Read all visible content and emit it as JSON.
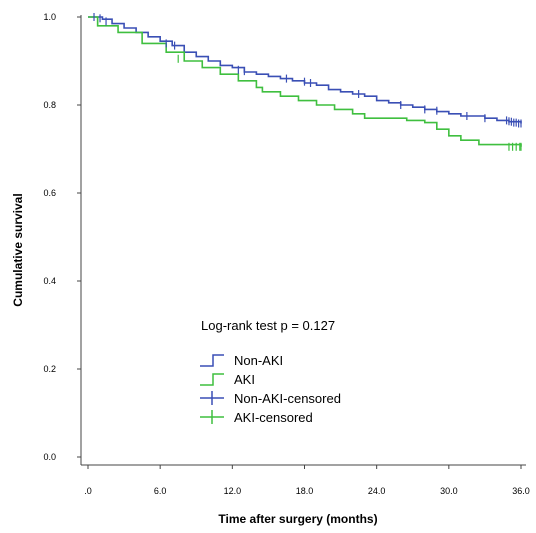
{
  "chart_data": {
    "type": "line",
    "title": "",
    "xlabel": "Time after surgery (months)",
    "ylabel": "Cumulative survival",
    "xlim": [
      0,
      36
    ],
    "ylim": [
      0,
      1.0
    ],
    "x_ticks": [
      ".0",
      "6.0",
      "12.0",
      "18.0",
      "24.0",
      "30.0",
      "36.0"
    ],
    "x_tick_values": [
      0,
      6,
      12,
      18,
      24,
      30,
      36
    ],
    "y_ticks": [
      "0.0",
      "0.2",
      "0.4",
      "0.6",
      "0.8",
      "1.0"
    ],
    "y_tick_values": [
      0,
      0.2,
      0.4,
      0.6,
      0.8,
      1.0
    ],
    "grid": false,
    "annotation": "Log-rank test p = 0.127",
    "legend_position": "center-left",
    "legend": [
      {
        "label": "Non-AKI",
        "kind": "line",
        "color": "#3a4fb5"
      },
      {
        "label": "AKI",
        "kind": "line",
        "color": "#3fbf3f"
      },
      {
        "label": "Non-AKI-censored",
        "kind": "censor",
        "color": "#3a4fb5"
      },
      {
        "label": "AKI-censored",
        "kind": "censor",
        "color": "#3fbf3f"
      }
    ],
    "series": [
      {
        "name": "Non-AKI",
        "color": "#3a4fb5",
        "step_points": [
          [
            0,
            1.0
          ],
          [
            1.2,
            0.995
          ],
          [
            2.0,
            0.985
          ],
          [
            3.0,
            0.975
          ],
          [
            4.0,
            0.965
          ],
          [
            5.0,
            0.955
          ],
          [
            6.0,
            0.945
          ],
          [
            7.0,
            0.935
          ],
          [
            8.0,
            0.92
          ],
          [
            9.0,
            0.91
          ],
          [
            10.0,
            0.9
          ],
          [
            11.0,
            0.89
          ],
          [
            12.0,
            0.885
          ],
          [
            13.0,
            0.875
          ],
          [
            14.0,
            0.87
          ],
          [
            15.0,
            0.865
          ],
          [
            16.0,
            0.86
          ],
          [
            17.0,
            0.855
          ],
          [
            18.0,
            0.85
          ],
          [
            19.0,
            0.845
          ],
          [
            20.0,
            0.835
          ],
          [
            21.0,
            0.83
          ],
          [
            22.0,
            0.825
          ],
          [
            23.0,
            0.82
          ],
          [
            24.0,
            0.81
          ],
          [
            25.0,
            0.805
          ],
          [
            26.0,
            0.8
          ],
          [
            27.0,
            0.795
          ],
          [
            28.0,
            0.79
          ],
          [
            29.0,
            0.785
          ],
          [
            30.0,
            0.78
          ],
          [
            31.0,
            0.775
          ],
          [
            32.0,
            0.775
          ],
          [
            33.0,
            0.77
          ],
          [
            34.0,
            0.765
          ],
          [
            35.0,
            0.762
          ],
          [
            36.0,
            0.758
          ]
        ],
        "censored": [
          [
            0.5,
            1.0
          ],
          [
            1.0,
            0.997
          ],
          [
            1.5,
            0.99
          ],
          [
            6.5,
            0.94
          ],
          [
            7.2,
            0.935
          ],
          [
            12.5,
            0.88
          ],
          [
            13.0,
            0.877
          ],
          [
            16.5,
            0.86
          ],
          [
            18.0,
            0.853
          ],
          [
            18.5,
            0.85
          ],
          [
            22.5,
            0.825
          ],
          [
            26.0,
            0.8
          ],
          [
            28.0,
            0.79
          ],
          [
            29.0,
            0.787
          ],
          [
            31.5,
            0.775
          ],
          [
            33.0,
            0.77
          ],
          [
            34.8,
            0.765
          ],
          [
            35.0,
            0.763
          ],
          [
            35.2,
            0.762
          ],
          [
            35.4,
            0.76
          ],
          [
            35.6,
            0.76
          ],
          [
            35.8,
            0.758
          ],
          [
            36.0,
            0.758
          ]
        ]
      },
      {
        "name": "AKI",
        "color": "#3fbf3f",
        "step_points": [
          [
            0,
            1.0
          ],
          [
            0.8,
            0.98
          ],
          [
            2.5,
            0.965
          ],
          [
            4.5,
            0.94
          ],
          [
            6.5,
            0.92
          ],
          [
            8.0,
            0.9
          ],
          [
            9.5,
            0.885
          ],
          [
            11.0,
            0.87
          ],
          [
            12.5,
            0.855
          ],
          [
            14.0,
            0.84
          ],
          [
            14.5,
            0.83
          ],
          [
            16.0,
            0.82
          ],
          [
            17.5,
            0.81
          ],
          [
            19.0,
            0.8
          ],
          [
            20.5,
            0.79
          ],
          [
            22.0,
            0.78
          ],
          [
            23.0,
            0.77
          ],
          [
            26.5,
            0.765
          ],
          [
            28.0,
            0.76
          ],
          [
            29.0,
            0.745
          ],
          [
            30.0,
            0.73
          ],
          [
            31.0,
            0.72
          ],
          [
            32.5,
            0.71
          ],
          [
            36.0,
            0.705
          ]
        ],
        "censored": [
          [
            0.8,
            0.99
          ],
          [
            7.5,
            0.905
          ],
          [
            35.0,
            0.705
          ],
          [
            35.3,
            0.705
          ],
          [
            35.6,
            0.705
          ],
          [
            35.9,
            0.705
          ],
          [
            36.0,
            0.705
          ]
        ]
      }
    ]
  }
}
